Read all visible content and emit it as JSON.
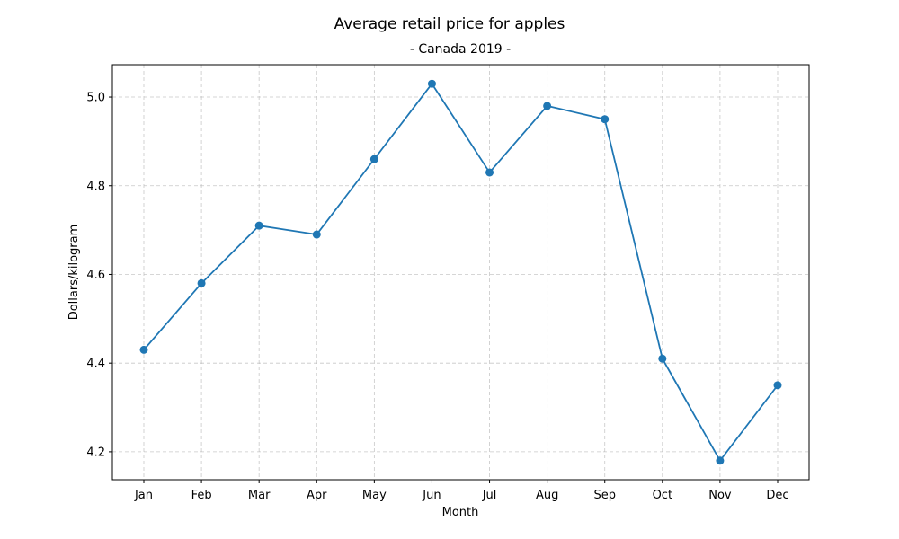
{
  "chart_data": {
    "type": "line",
    "title": "Average retail price for apples",
    "subtitle": "- Canada 2019 -",
    "xlabel": "Month",
    "ylabel": "Dollars/kilogram",
    "categories": [
      "Jan",
      "Feb",
      "Mar",
      "Apr",
      "May",
      "Jun",
      "Jul",
      "Aug",
      "Sep",
      "Oct",
      "Nov",
      "Dec"
    ],
    "series": [
      {
        "values": [
          4.43,
          4.58,
          4.71,
          4.69,
          4.86,
          5.03,
          4.83,
          4.98,
          4.95,
          4.41,
          4.18,
          4.35
        ],
        "color": "#1f77b4",
        "marker": "circle"
      }
    ],
    "yticks": [
      "4.2",
      "4.4",
      "4.6",
      "4.8",
      "5.0"
    ],
    "ylim": [
      4.137,
      5.073
    ],
    "grid": true,
    "grid_style": "dashed",
    "grid_color": "#b0b0b0",
    "legend": false
  }
}
